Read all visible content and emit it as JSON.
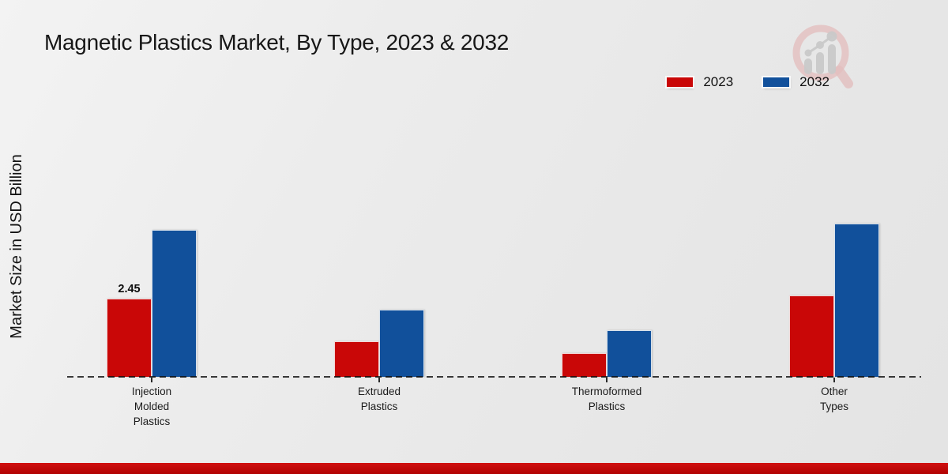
{
  "title": "Magnetic Plastics Market, By Type, 2023 & 2032",
  "y_axis_label": "Market Size in USD Billion",
  "legend": {
    "items": [
      "2023",
      "2032"
    ],
    "position": "top-right"
  },
  "branding": {
    "logo_name": "market-research-future-magnifier-logo",
    "accent_bar_color": "#b10202"
  },
  "colors": {
    "series_2023": "#c90707",
    "series_2032": "#11509b",
    "baseline": "#141414",
    "background": "#ececec"
  },
  "chart_data": {
    "type": "bar",
    "title": "Magnetic Plastics Market, By Type, 2023 & 2032",
    "xlabel": "",
    "ylabel": "Market Size in USD Billion",
    "categories": [
      "Injection\nMolded\nPlastics",
      "Extruded\nPlastics",
      "Thermoformed\nPlastics",
      "Other\nTypes"
    ],
    "series": [
      {
        "name": "2023",
        "color": "#c90707",
        "values": [
          2.45,
          1.1,
          0.75,
          2.55
        ]
      },
      {
        "name": "2032",
        "color": "#11509b",
        "values": [
          4.6,
          2.1,
          1.45,
          4.8
        ]
      }
    ],
    "bar_labels": [
      {
        "series_index": 0,
        "category_index": 0,
        "text": "2.45"
      }
    ],
    "ylim": [
      0,
      5.2
    ],
    "grid": false,
    "axis_style": "dashed-baseline-only",
    "legend_position": "top-right"
  }
}
